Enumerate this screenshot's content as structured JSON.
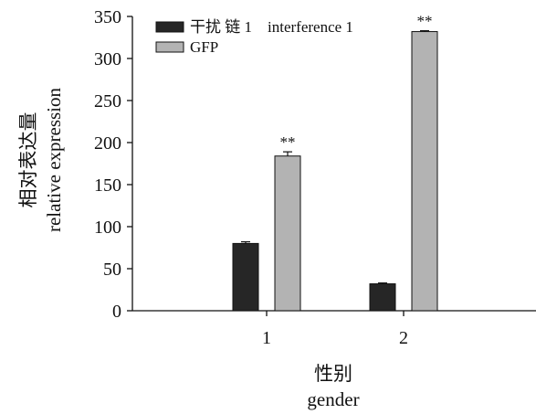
{
  "chart_data": {
    "type": "bar",
    "categories": [
      "1",
      "2"
    ],
    "series": [
      {
        "name": "干扰 链 1    interference 1",
        "values": [
          80,
          32
        ],
        "errors": [
          2,
          1
        ],
        "color": "#262626",
        "significance": [
          "",
          ""
        ]
      },
      {
        "name": "GFP",
        "values": [
          184,
          332
        ],
        "errors": [
          5,
          1
        ],
        "color": "#b3b3b3",
        "significance": [
          "**",
          "**"
        ]
      }
    ],
    "ylim": [
      0,
      350
    ],
    "yticks": [
      0,
      50,
      100,
      150,
      200,
      250,
      300,
      350
    ],
    "ylabel_cn": "相对表达量",
    "ylabel_en": "relative expression",
    "xlabel_cn": "性别",
    "xlabel_en": "gender",
    "legend_position": "top-left",
    "grid": false
  }
}
